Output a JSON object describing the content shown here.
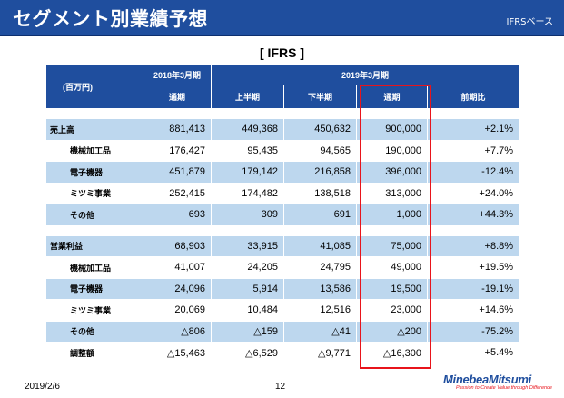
{
  "header": {
    "title": "セグメント別業績予想",
    "basis": "IFRSベース"
  },
  "table_label": "[ IFRS ]",
  "table": {
    "unit": "(百万円)",
    "period_prev": "2018年3月期",
    "period_curr": "2019年3月期",
    "col_prev_full": "通期",
    "col_h1": "上半期",
    "col_h2": "下半期",
    "col_full": "通期",
    "col_yoy": "前期比",
    "rows": [
      {
        "label": "売上高",
        "prev": "881,413",
        "h1": "449,368",
        "h2": "450,632",
        "full": "900,000",
        "yoy": "+2.1%"
      },
      {
        "label": "機械加工品",
        "prev": "176,427",
        "h1": "95,435",
        "h2": "94,565",
        "full": "190,000",
        "yoy": "+7.7%"
      },
      {
        "label": "電子機器",
        "prev": "451,879",
        "h1": "179,142",
        "h2": "216,858",
        "full": "396,000",
        "yoy": "-12.4%"
      },
      {
        "label": "ミツミ事業",
        "prev": "252,415",
        "h1": "174,482",
        "h2": "138,518",
        "full": "313,000",
        "yoy": "+24.0%"
      },
      {
        "label": "その他",
        "prev": "693",
        "h1": "309",
        "h2": "691",
        "full": "1,000",
        "yoy": "+44.3%"
      },
      {
        "label": "営業利益",
        "prev": "68,903",
        "h1": "33,915",
        "h2": "41,085",
        "full": "75,000",
        "yoy": "+8.8%"
      },
      {
        "label": "機械加工品",
        "prev": "41,007",
        "h1": "24,205",
        "h2": "24,795",
        "full": "49,000",
        "yoy": "+19.5%"
      },
      {
        "label": "電子機器",
        "prev": "24,096",
        "h1": "5,914",
        "h2": "13,586",
        "full": "19,500",
        "yoy": "-19.1%"
      },
      {
        "label": "ミツミ事業",
        "prev": "20,069",
        "h1": "10,484",
        "h2": "12,516",
        "full": "23,000",
        "yoy": "+14.6%"
      },
      {
        "label": "その他",
        "prev": "△806",
        "h1": "△159",
        "h2": "△41",
        "full": "△200",
        "yoy": "-75.2%"
      },
      {
        "label": "調整額",
        "prev": "△15,463",
        "h1": "△6,529",
        "h2": "△9,771",
        "full": "△16,300",
        "yoy": "+5.4%"
      }
    ]
  },
  "footer": {
    "date": "2019/2/6",
    "page": "12",
    "logo_name": "MinebeaMitsumi",
    "logo_tagline": "Passion to Create Value through Difference"
  },
  "colors": {
    "header_blue": "#1f4e9e",
    "row_blue": "#bdd7ee",
    "highlight_red": "#e8141b"
  }
}
